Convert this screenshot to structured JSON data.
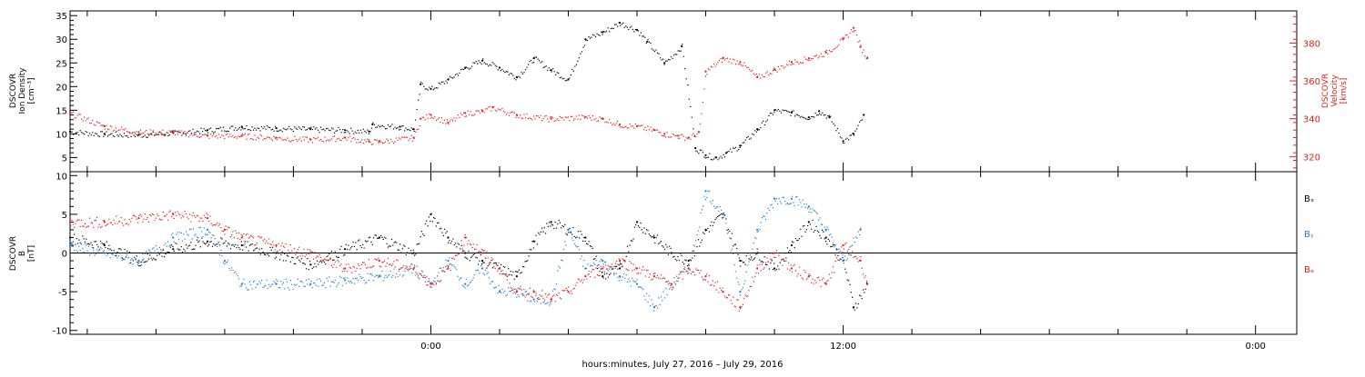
{
  "xlabel": "hours:minutes, July 27, 2016 – July 29, 2016",
  "x_tick_labels": [
    "0:00",
    "12:00",
    "0:00"
  ],
  "x_range_hours": [
    -10.5,
    25.2
  ],
  "colors": {
    "black": "#000000",
    "red": "#e0201b",
    "blue": "#1f7fd0",
    "axis": "#000000"
  },
  "chart_data": [
    {
      "type": "scatter",
      "panel": "top",
      "left_ylabel": [
        "DSCOVR",
        "Ion Density",
        "[cm⁻³]"
      ],
      "right_ylabel": [
        "DSCOVR",
        "Velocity",
        "[km/s]"
      ],
      "left_ylim": [
        2,
        36
      ],
      "right_ylim": [
        312,
        397
      ],
      "left_ticks": [
        5,
        10,
        15,
        20,
        25,
        30,
        35
      ],
      "right_ticks": [
        320,
        340,
        360,
        380
      ],
      "x_unit": "hours from 0:00 July 28, 2016",
      "series": [
        {
          "axis": "left",
          "color_key": "black",
          "x": [
            -10.5,
            -9.5,
            -8.5,
            -7.5,
            -6.5,
            -5.5,
            -4.5,
            -3.5,
            -2.5,
            -1.8,
            -1.7,
            -0.9,
            -0.5,
            -0.3,
            0.0,
            0.5,
            1.0,
            1.5,
            2.0,
            2.5,
            3.0,
            3.5,
            4.0,
            4.5,
            5.0,
            5.5,
            6.0,
            6.3,
            6.8,
            7.3,
            7.7,
            8.0,
            8.3,
            8.6,
            9.0,
            9.5,
            10.0,
            10.5,
            11.0,
            11.3,
            11.6,
            12.0,
            12.3,
            12.6
          ],
          "y": [
            10.5,
            10.0,
            9.8,
            10.2,
            10.8,
            11.5,
            11.2,
            11.0,
            10.8,
            10.5,
            12,
            11.5,
            11,
            20.5,
            19.5,
            21.5,
            24,
            25.5,
            24,
            22,
            26,
            23.5,
            21.5,
            30,
            31.5,
            33.5,
            32,
            29.5,
            25,
            28.5,
            7,
            5.5,
            5,
            6,
            7.5,
            11,
            15,
            14.5,
            13.5,
            14.8,
            13.5,
            8.5,
            10,
            14
          ]
        },
        {
          "axis": "right",
          "color_key": "red",
          "x": [
            -10.5,
            -9.5,
            -8.5,
            -7.5,
            -6.5,
            -5.5,
            -4.5,
            -3.5,
            -2.5,
            -1.8,
            -1.5,
            -0.5,
            -0.3,
            0.0,
            0.5,
            1.0,
            1.5,
            1.8,
            2.5,
            3.5,
            4.5,
            5.0,
            5.5,
            6.0,
            6.5,
            6.8,
            7.2,
            7.5,
            7.8,
            8.0,
            8.5,
            9.0,
            9.5,
            10.0,
            10.5,
            11.0,
            11.5,
            12.0,
            12.3,
            12.5,
            12.7
          ],
          "y": [
            343,
            336,
            333,
            333,
            331,
            331,
            330,
            329,
            330,
            328,
            328,
            330,
            340,
            342,
            338,
            343,
            344,
            346,
            342,
            340,
            341,
            340,
            337,
            336,
            334,
            332,
            331,
            330,
            333,
            365,
            372,
            370,
            362,
            366,
            370,
            372,
            375,
            382,
            388,
            378,
            372
          ]
        }
      ]
    },
    {
      "type": "scatter",
      "panel": "bottom",
      "left_ylabel": [
        "DSCOVR",
        "B",
        "[nT]"
      ],
      "ylim": [
        -10.5,
        10.5
      ],
      "ticks": [
        -10,
        -5,
        0,
        5,
        10
      ],
      "x_unit": "hours from 0:00 July 28, 2016",
      "legend": [
        "Bₓ",
        "Bᵧ",
        "Bₔ"
      ],
      "legend_placement": "right",
      "series": [
        {
          "name": "Bₓ",
          "color_key": "black",
          "x": [
            -10.5,
            -9.5,
            -8.5,
            -7.5,
            -6.5,
            -5.5,
            -4.5,
            -3.5,
            -2.5,
            -1.5,
            -0.5,
            0.0,
            0.5,
            1.0,
            1.5,
            2.0,
            2.5,
            3.0,
            3.5,
            4.0,
            4.5,
            5.0,
            5.5,
            6.0,
            6.5,
            7.0,
            7.5,
            8.0,
            8.5,
            9.0,
            9.5,
            10.0,
            10.5,
            11.0,
            11.5,
            12.0,
            12.3,
            12.7
          ],
          "y": [
            2,
            1,
            -1,
            0.5,
            1.5,
            1,
            0,
            -1.5,
            0.5,
            2,
            0,
            5,
            2,
            0,
            -1,
            -2,
            -3,
            1.5,
            4,
            3,
            2,
            -3,
            -2,
            4,
            2,
            0,
            -1,
            3,
            5,
            -1,
            0,
            -2,
            1,
            4,
            2,
            -1,
            -7,
            -4
          ]
        },
        {
          "name": "Bᵧ",
          "color_key": "blue",
          "x": [
            -10.5,
            -9.5,
            -8.5,
            -7.5,
            -6.5,
            -6.0,
            -5.5,
            -4.5,
            -3.5,
            -2.5,
            -1.5,
            -0.5,
            0.0,
            0.5,
            1.0,
            1.5,
            2.0,
            2.5,
            3.0,
            3.5,
            4.0,
            4.5,
            5.0,
            5.5,
            6.0,
            6.5,
            7.0,
            7.5,
            8.0,
            8.5,
            9.0,
            9.5,
            10.0,
            10.5,
            11.0,
            11.5,
            12.0,
            12.5
          ],
          "y": [
            1,
            0,
            -1,
            2,
            3,
            -1,
            -4,
            -4,
            -4,
            -3.5,
            -3,
            -2,
            -4,
            -1,
            -4,
            -2,
            -5,
            -5,
            -6,
            -6,
            3,
            -2,
            -1,
            -3,
            -4,
            -7,
            -4,
            -2,
            8,
            5,
            -5,
            3,
            7,
            7,
            6,
            3,
            -1,
            3
          ]
        },
        {
          "name": "Bₔ",
          "color_key": "red",
          "x": [
            -10.5,
            -9.5,
            -8.5,
            -7.5,
            -6.5,
            -6.0,
            -5.5,
            -4.5,
            -3.5,
            -2.5,
            -1.5,
            -0.5,
            0.0,
            0.5,
            1.0,
            1.5,
            2.0,
            2.5,
            3.0,
            3.5,
            4.0,
            4.5,
            5.0,
            5.5,
            6.0,
            6.5,
            7.0,
            7.5,
            8.0,
            8.5,
            9.0,
            9.5,
            10.0,
            10.5,
            11.0,
            11.5,
            12.0,
            12.5,
            12.7
          ],
          "y": [
            4,
            4,
            4.5,
            5,
            4.5,
            3,
            2,
            1,
            0,
            -2,
            -1,
            -2,
            -4,
            -2,
            2,
            0,
            -2,
            -5,
            -5,
            -6,
            -5,
            -3,
            -2,
            -1,
            -2,
            -3,
            -4,
            -2,
            -3,
            -5,
            -7,
            -2,
            0,
            -2,
            -3,
            -4,
            1,
            -1,
            -4
          ]
        }
      ]
    }
  ]
}
